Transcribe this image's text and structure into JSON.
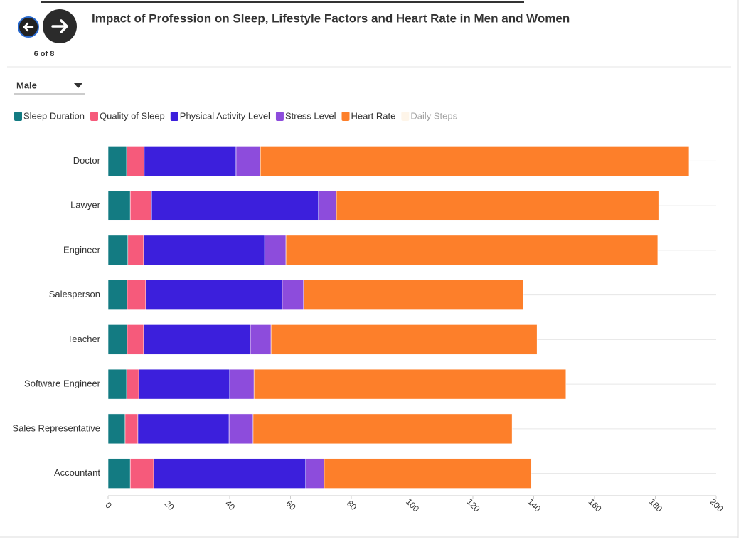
{
  "ui": {
    "page_indicator": "6 of 8",
    "dropdown": "Male"
  },
  "chart_data": {
    "type": "stacked-bar-horizontal",
    "title": "Impact of Profession on Sleep, Lifestyle Factors and Heart Rate in Men and Women",
    "categories": [
      "Doctor",
      "Lawyer",
      "Engineer",
      "Salesperson",
      "Teacher",
      "Software Engineer",
      "Sales Representative",
      "Accountant"
    ],
    "series": [
      {
        "name": "Sleep Duration",
        "color": "#137b82",
        "values": [
          6.1,
          7.3,
          6.5,
          6.3,
          6.3,
          6.1,
          5.6,
          7.3
        ]
      },
      {
        "name": "Quality of Sleep",
        "color": "#f65a7b",
        "values": [
          5.8,
          7.0,
          5.2,
          6.1,
          5.4,
          4.0,
          4.2,
          7.7
        ]
      },
      {
        "name": "Physical Activity Level",
        "color": "#3c1fdc",
        "values": [
          30.2,
          54.9,
          39.8,
          44.9,
          35.1,
          29.9,
          30.0,
          50.0
        ]
      },
      {
        "name": "Stress Level",
        "color": "#8d4cdc",
        "values": [
          8.0,
          5.9,
          7.0,
          7.0,
          6.8,
          8.0,
          7.9,
          6.1
        ]
      },
      {
        "name": "Heart Rate",
        "color": "#fd7f2a",
        "values": [
          141.0,
          106.0,
          122.3,
          72.3,
          87.5,
          102.6,
          85.2,
          68.1
        ]
      },
      {
        "name": "Daily Steps",
        "color": "#fdebd0",
        "visible": false
      }
    ],
    "xlim": [
      0,
      200
    ],
    "xticks": [
      0,
      20,
      40,
      60,
      80,
      100,
      120,
      140,
      160,
      180,
      200
    ],
    "grid": true
  }
}
